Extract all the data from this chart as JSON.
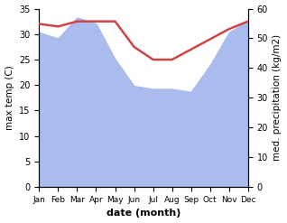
{
  "months": [
    "Jan",
    "Feb",
    "Mar",
    "Apr",
    "May",
    "Jun",
    "Jul",
    "Aug",
    "Sep",
    "Oct",
    "Nov",
    "Dec"
  ],
  "temperature": [
    32.0,
    31.5,
    32.5,
    32.5,
    32.5,
    27.5,
    25.0,
    25.0,
    27.0,
    29.0,
    31.0,
    32.5
  ],
  "precipitation": [
    52.0,
    50.0,
    57.0,
    55.0,
    43.0,
    34.0,
    33.0,
    33.0,
    32.0,
    41.0,
    52.0,
    56.0
  ],
  "temp_color": "#cc4444",
  "precip_color": "#aabbee",
  "temp_ylim": [
    0,
    35
  ],
  "precip_ylim": [
    0,
    60
  ],
  "xlabel": "date (month)",
  "ylabel_left": "max temp (C)",
  "ylabel_right": "med. precipitation (kg/m2)",
  "bg_color": "#ffffff"
}
